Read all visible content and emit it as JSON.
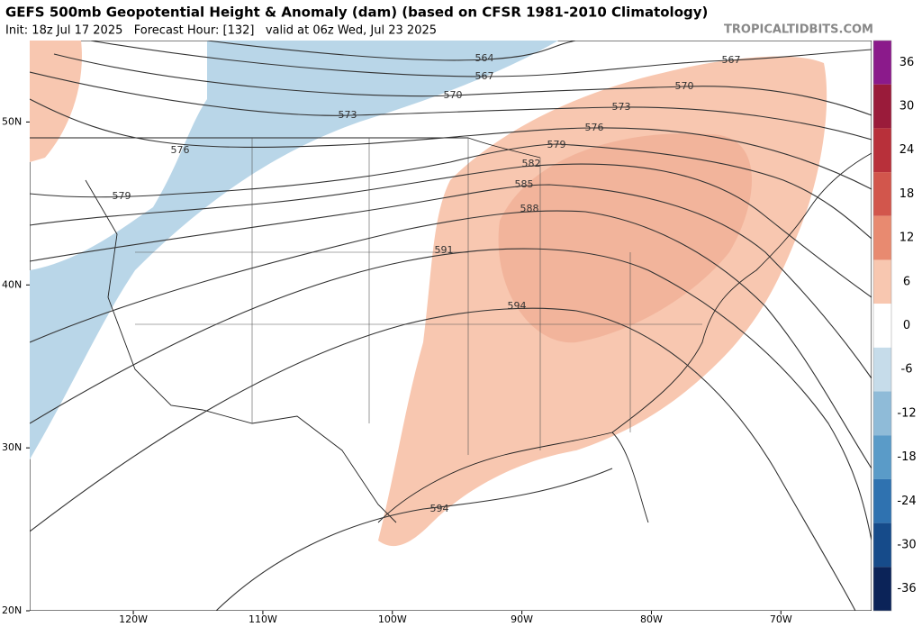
{
  "header": {
    "title": "GEFS 500mb Geopotential Height & Anomaly (dam) (based on CFSR 1981-2010 Climatology)",
    "subtitle": "Init: 18z Jul 17 2025   Forecast Hour: [132]   valid at 06z Wed, Jul 23 2025",
    "brand": "TROPICALTIDBITS.COM"
  },
  "map": {
    "xlim": [
      -128,
      -63
    ],
    "ylim": [
      20,
      55
    ],
    "lon_ticks": [
      {
        "value": -120,
        "label": "120W"
      },
      {
        "value": -110,
        "label": "110W"
      },
      {
        "value": -100,
        "label": "100W"
      },
      {
        "value": -90,
        "label": "90W"
      },
      {
        "value": -80,
        "label": "80W"
      },
      {
        "value": -70,
        "label": "70W"
      }
    ],
    "lat_ticks": [
      {
        "value": 50,
        "label": "50N"
      },
      {
        "value": 40,
        "label": "40N"
      },
      {
        "value": 30,
        "label": "30N"
      },
      {
        "value": 20,
        "label": "20N"
      }
    ],
    "contour_labels": [
      564,
      567,
      570,
      573,
      576,
      579,
      582,
      585,
      588,
      591,
      594,
      594,
      567,
      570,
      573,
      576,
      579
    ]
  },
  "colorbar": {
    "range": [
      -39,
      39
    ],
    "ticks": [
      36,
      30,
      24,
      18,
      12,
      6,
      0,
      -6,
      -12,
      -18,
      -24,
      -30,
      -36
    ],
    "colors": [
      "#8b1a8b",
      "#9a1b3a",
      "#b8303a",
      "#d2564c",
      "#e88a70",
      "#f8c7b0",
      "#ffffff",
      "#c6dcea",
      "#8fbbd8",
      "#5a9bc8",
      "#2f72b0",
      "#164b8a",
      "#0b2358"
    ]
  }
}
